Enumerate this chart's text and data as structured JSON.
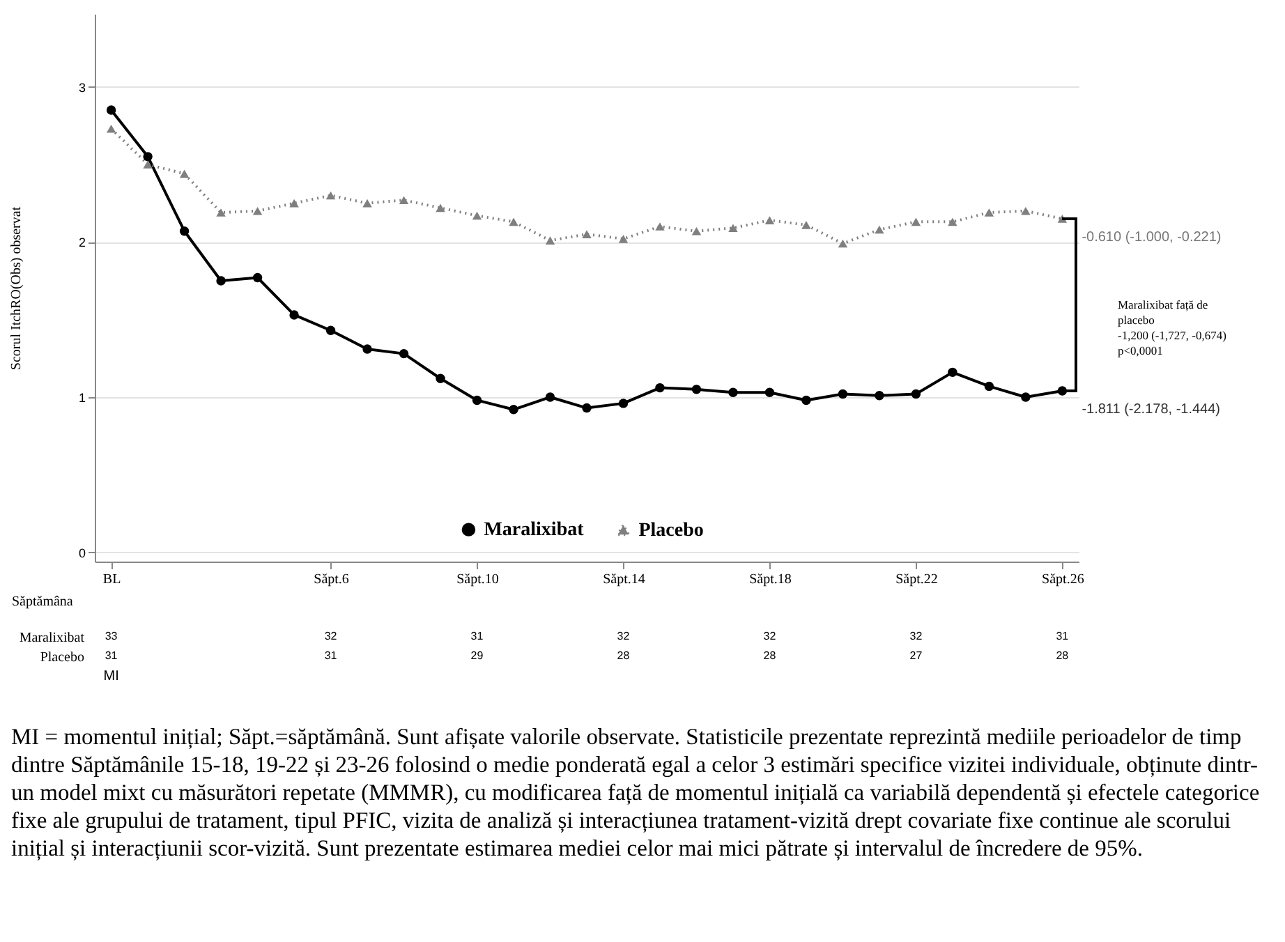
{
  "chart_data": {
    "type": "line",
    "ylabel": "Scorul ItchRO(Obs) observat",
    "xlabel": "Săptămâna",
    "categories": [
      "BL",
      null,
      null,
      null,
      null,
      null,
      "Săpt.6",
      null,
      null,
      null,
      "Săpt.10",
      null,
      null,
      null,
      "Săpt.14",
      null,
      null,
      null,
      "Săpt.18",
      null,
      null,
      null,
      "Săpt.22",
      null,
      null,
      null,
      "Săpt.26"
    ],
    "ylim": [
      -0.06,
      3.47
    ],
    "yticks": [
      0,
      1,
      2,
      3
    ],
    "grid": "y",
    "legend": "bottom",
    "series": [
      {
        "name": "Maralixibat",
        "color": "#000000",
        "marker": "circle",
        "line_style": "solid",
        "values": [
          2.85,
          2.55,
          2.07,
          1.75,
          1.77,
          1.53,
          1.43,
          1.31,
          1.28,
          1.12,
          0.98,
          0.92,
          1.0,
          0.93,
          0.96,
          1.06,
          1.05,
          1.03,
          1.03,
          0.98,
          1.02,
          1.01,
          1.02,
          1.16,
          1.07,
          1.0,
          1.04
        ]
      },
      {
        "name": "Placebo",
        "color": "#7f7f7f",
        "marker": "triangle",
        "line_style": "dotted",
        "values": [
          2.73,
          2.5,
          2.44,
          2.19,
          2.2,
          2.25,
          2.3,
          2.25,
          2.27,
          2.22,
          2.17,
          2.13,
          2.01,
          2.05,
          2.02,
          2.1,
          2.07,
          2.09,
          2.14,
          2.11,
          1.99,
          2.08,
          2.13,
          2.13,
          2.19,
          2.2,
          2.15
        ]
      }
    ],
    "annotations": [
      "-0.610 (-1.000, -0.221)",
      "-1.811 (-2.178, -1.444)",
      "Maralixibat față de\nplacebo\n-1,200 (-1,727, -0,674)\np<0,0001",
      "Maralixibat",
      "33",
      "32",
      "31",
      "32",
      "32",
      "32",
      "31",
      "Placebo",
      "31",
      "31",
      "29",
      "28",
      "28",
      "27",
      "28",
      "MI",
      "MI = momentul inițial; Săpt.=săptămână. Sunt afișate valorile observate. Statisticile prezentate reprezintă mediile perioadelor de timp dintre Săptămânile 15-18, 19-22 și 23-26 folosind o medie ponderată egal a celor 3 estimări specifice vizitei individuale, obținute dintr-un model mixt cu măsurători repetate (MMMR), cu modificarea față de momentul inițială ca variabilă dependentă și efectele categorice fixe ale grupului de tratament, tipul PFIC, vizita de analiză și interacțiunea tratament-vizită drept covariate fixe continue ale scorului inițial și interacțiunii scor-vizită. Sunt prezentate estimarea mediei celor mai mici pătrate și intervalul de încredere de 95%."
    ]
  }
}
